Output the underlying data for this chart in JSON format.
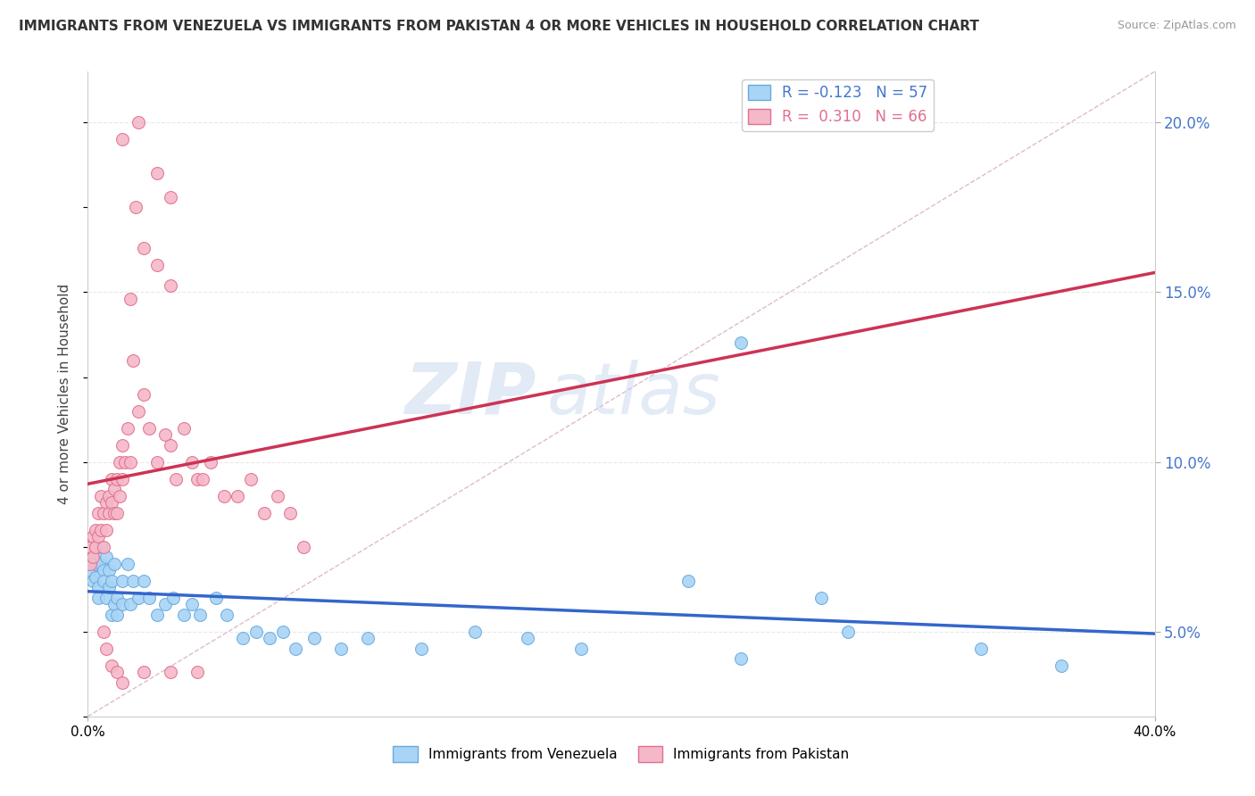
{
  "title": "IMMIGRANTS FROM VENEZUELA VS IMMIGRANTS FROM PAKISTAN 4 OR MORE VEHICLES IN HOUSEHOLD CORRELATION CHART",
  "source": "Source: ZipAtlas.com",
  "ylabel": "4 or more Vehicles in Household",
  "series1_name": "Immigrants from Venezuela",
  "series2_name": "Immigrants from Pakistan",
  "series1_color": "#a8d4f5",
  "series2_color": "#f5b8c8",
  "series1_edge": "#6aaade",
  "series2_edge": "#e07090",
  "series1_line_color": "#3366cc",
  "series2_line_color": "#cc3355",
  "watermark_zip": "ZIP",
  "watermark_atlas": "atlas",
  "xmin": 0.0,
  "xmax": 0.4,
  "ymin": 0.025,
  "ymax": 0.215,
  "R1": -0.123,
  "N1": 57,
  "R2": 0.31,
  "N2": 66,
  "diagonal_line_color": "#ddbbcc",
  "grid_color": "#e8e8e8",
  "right_axis_color": "#4477cc",
  "series1_points": [
    [
      0.001,
      0.075
    ],
    [
      0.001,
      0.068
    ],
    [
      0.002,
      0.072
    ],
    [
      0.002,
      0.065
    ],
    [
      0.003,
      0.07
    ],
    [
      0.003,
      0.066
    ],
    [
      0.004,
      0.063
    ],
    [
      0.004,
      0.06
    ],
    [
      0.005,
      0.075
    ],
    [
      0.005,
      0.07
    ],
    [
      0.006,
      0.068
    ],
    [
      0.006,
      0.065
    ],
    [
      0.007,
      0.072
    ],
    [
      0.007,
      0.06
    ],
    [
      0.008,
      0.068
    ],
    [
      0.008,
      0.063
    ],
    [
      0.009,
      0.065
    ],
    [
      0.009,
      0.055
    ],
    [
      0.01,
      0.07
    ],
    [
      0.01,
      0.058
    ],
    [
      0.011,
      0.06
    ],
    [
      0.011,
      0.055
    ],
    [
      0.013,
      0.065
    ],
    [
      0.013,
      0.058
    ],
    [
      0.015,
      0.07
    ],
    [
      0.016,
      0.058
    ],
    [
      0.017,
      0.065
    ],
    [
      0.019,
      0.06
    ],
    [
      0.021,
      0.065
    ],
    [
      0.023,
      0.06
    ],
    [
      0.026,
      0.055
    ],
    [
      0.029,
      0.058
    ],
    [
      0.032,
      0.06
    ],
    [
      0.036,
      0.055
    ],
    [
      0.039,
      0.058
    ],
    [
      0.042,
      0.055
    ],
    [
      0.048,
      0.06
    ],
    [
      0.052,
      0.055
    ],
    [
      0.058,
      0.048
    ],
    [
      0.063,
      0.05
    ],
    [
      0.068,
      0.048
    ],
    [
      0.073,
      0.05
    ],
    [
      0.078,
      0.045
    ],
    [
      0.085,
      0.048
    ],
    [
      0.095,
      0.045
    ],
    [
      0.105,
      0.048
    ],
    [
      0.125,
      0.045
    ],
    [
      0.145,
      0.05
    ],
    [
      0.165,
      0.048
    ],
    [
      0.185,
      0.045
    ],
    [
      0.225,
      0.065
    ],
    [
      0.245,
      0.042
    ],
    [
      0.275,
      0.06
    ],
    [
      0.285,
      0.05
    ],
    [
      0.335,
      0.045
    ],
    [
      0.365,
      0.04
    ],
    [
      0.245,
      0.135
    ]
  ],
  "series2_points": [
    [
      0.001,
      0.075
    ],
    [
      0.001,
      0.07
    ],
    [
      0.002,
      0.078
    ],
    [
      0.002,
      0.072
    ],
    [
      0.003,
      0.08
    ],
    [
      0.003,
      0.075
    ],
    [
      0.004,
      0.085
    ],
    [
      0.004,
      0.078
    ],
    [
      0.005,
      0.09
    ],
    [
      0.005,
      0.08
    ],
    [
      0.006,
      0.085
    ],
    [
      0.006,
      0.075
    ],
    [
      0.007,
      0.088
    ],
    [
      0.007,
      0.08
    ],
    [
      0.008,
      0.09
    ],
    [
      0.008,
      0.085
    ],
    [
      0.009,
      0.095
    ],
    [
      0.009,
      0.088
    ],
    [
      0.01,
      0.092
    ],
    [
      0.01,
      0.085
    ],
    [
      0.011,
      0.095
    ],
    [
      0.011,
      0.085
    ],
    [
      0.012,
      0.09
    ],
    [
      0.012,
      0.1
    ],
    [
      0.013,
      0.095
    ],
    [
      0.013,
      0.105
    ],
    [
      0.014,
      0.1
    ],
    [
      0.015,
      0.11
    ],
    [
      0.016,
      0.1
    ],
    [
      0.016,
      0.148
    ],
    [
      0.017,
      0.13
    ],
    [
      0.019,
      0.115
    ],
    [
      0.021,
      0.12
    ],
    [
      0.023,
      0.11
    ],
    [
      0.026,
      0.1
    ],
    [
      0.029,
      0.108
    ],
    [
      0.031,
      0.105
    ],
    [
      0.033,
      0.095
    ],
    [
      0.036,
      0.11
    ],
    [
      0.039,
      0.1
    ],
    [
      0.041,
      0.095
    ],
    [
      0.043,
      0.095
    ],
    [
      0.046,
      0.1
    ],
    [
      0.051,
      0.09
    ],
    [
      0.056,
      0.09
    ],
    [
      0.061,
      0.095
    ],
    [
      0.066,
      0.085
    ],
    [
      0.071,
      0.09
    ],
    [
      0.076,
      0.085
    ],
    [
      0.081,
      0.075
    ],
    [
      0.006,
      0.05
    ],
    [
      0.007,
      0.045
    ],
    [
      0.009,
      0.04
    ],
    [
      0.011,
      0.038
    ],
    [
      0.013,
      0.035
    ],
    [
      0.021,
      0.038
    ],
    [
      0.031,
      0.038
    ],
    [
      0.041,
      0.038
    ],
    [
      0.018,
      0.175
    ],
    [
      0.021,
      0.163
    ],
    [
      0.026,
      0.158
    ],
    [
      0.031,
      0.152
    ],
    [
      0.019,
      0.2
    ],
    [
      0.026,
      0.185
    ],
    [
      0.031,
      0.178
    ],
    [
      0.013,
      0.195
    ]
  ]
}
